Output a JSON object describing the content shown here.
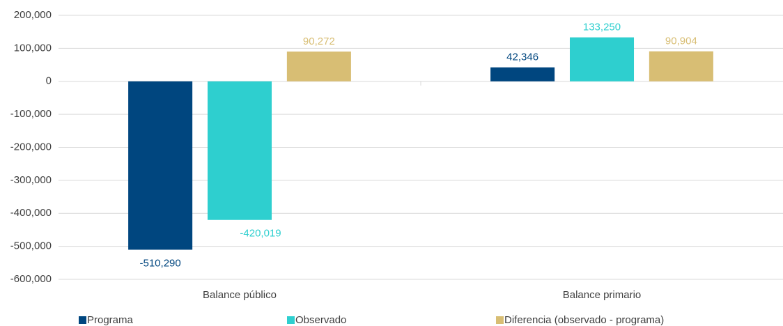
{
  "chart_data": {
    "type": "bar",
    "categories": [
      "Balance público",
      "Balance primario"
    ],
    "series": [
      {
        "name": "Programa",
        "color": "#00467f",
        "values": [
          -510290,
          42346
        ],
        "value_labels": [
          "-510,290",
          "42,346"
        ]
      },
      {
        "name": "Observado",
        "color": "#2ecfcf",
        "values": [
          -420019,
          133250
        ],
        "value_labels": [
          "-420,019",
          "133,250"
        ]
      },
      {
        "name": "Diferencia (observado - programa)",
        "color": "#d8be74",
        "values": [
          90272,
          90904
        ],
        "value_labels": [
          "90,272",
          "90,904"
        ]
      }
    ],
    "ylim": [
      -600000,
      200000
    ],
    "yticks": [
      {
        "value": -600000,
        "label": "-600,000"
      },
      {
        "value": -500000,
        "label": "-500,000"
      },
      {
        "value": -400000,
        "label": "-400,000"
      },
      {
        "value": -300000,
        "label": "-300,000"
      },
      {
        "value": -200000,
        "label": "-200,000"
      },
      {
        "value": -100000,
        "label": "-100,000"
      },
      0,
      {
        "value": 100000,
        "label": "100,000"
      },
      {
        "value": 200000,
        "label": "200,000"
      }
    ],
    "grid": true,
    "legend": "bottom"
  }
}
